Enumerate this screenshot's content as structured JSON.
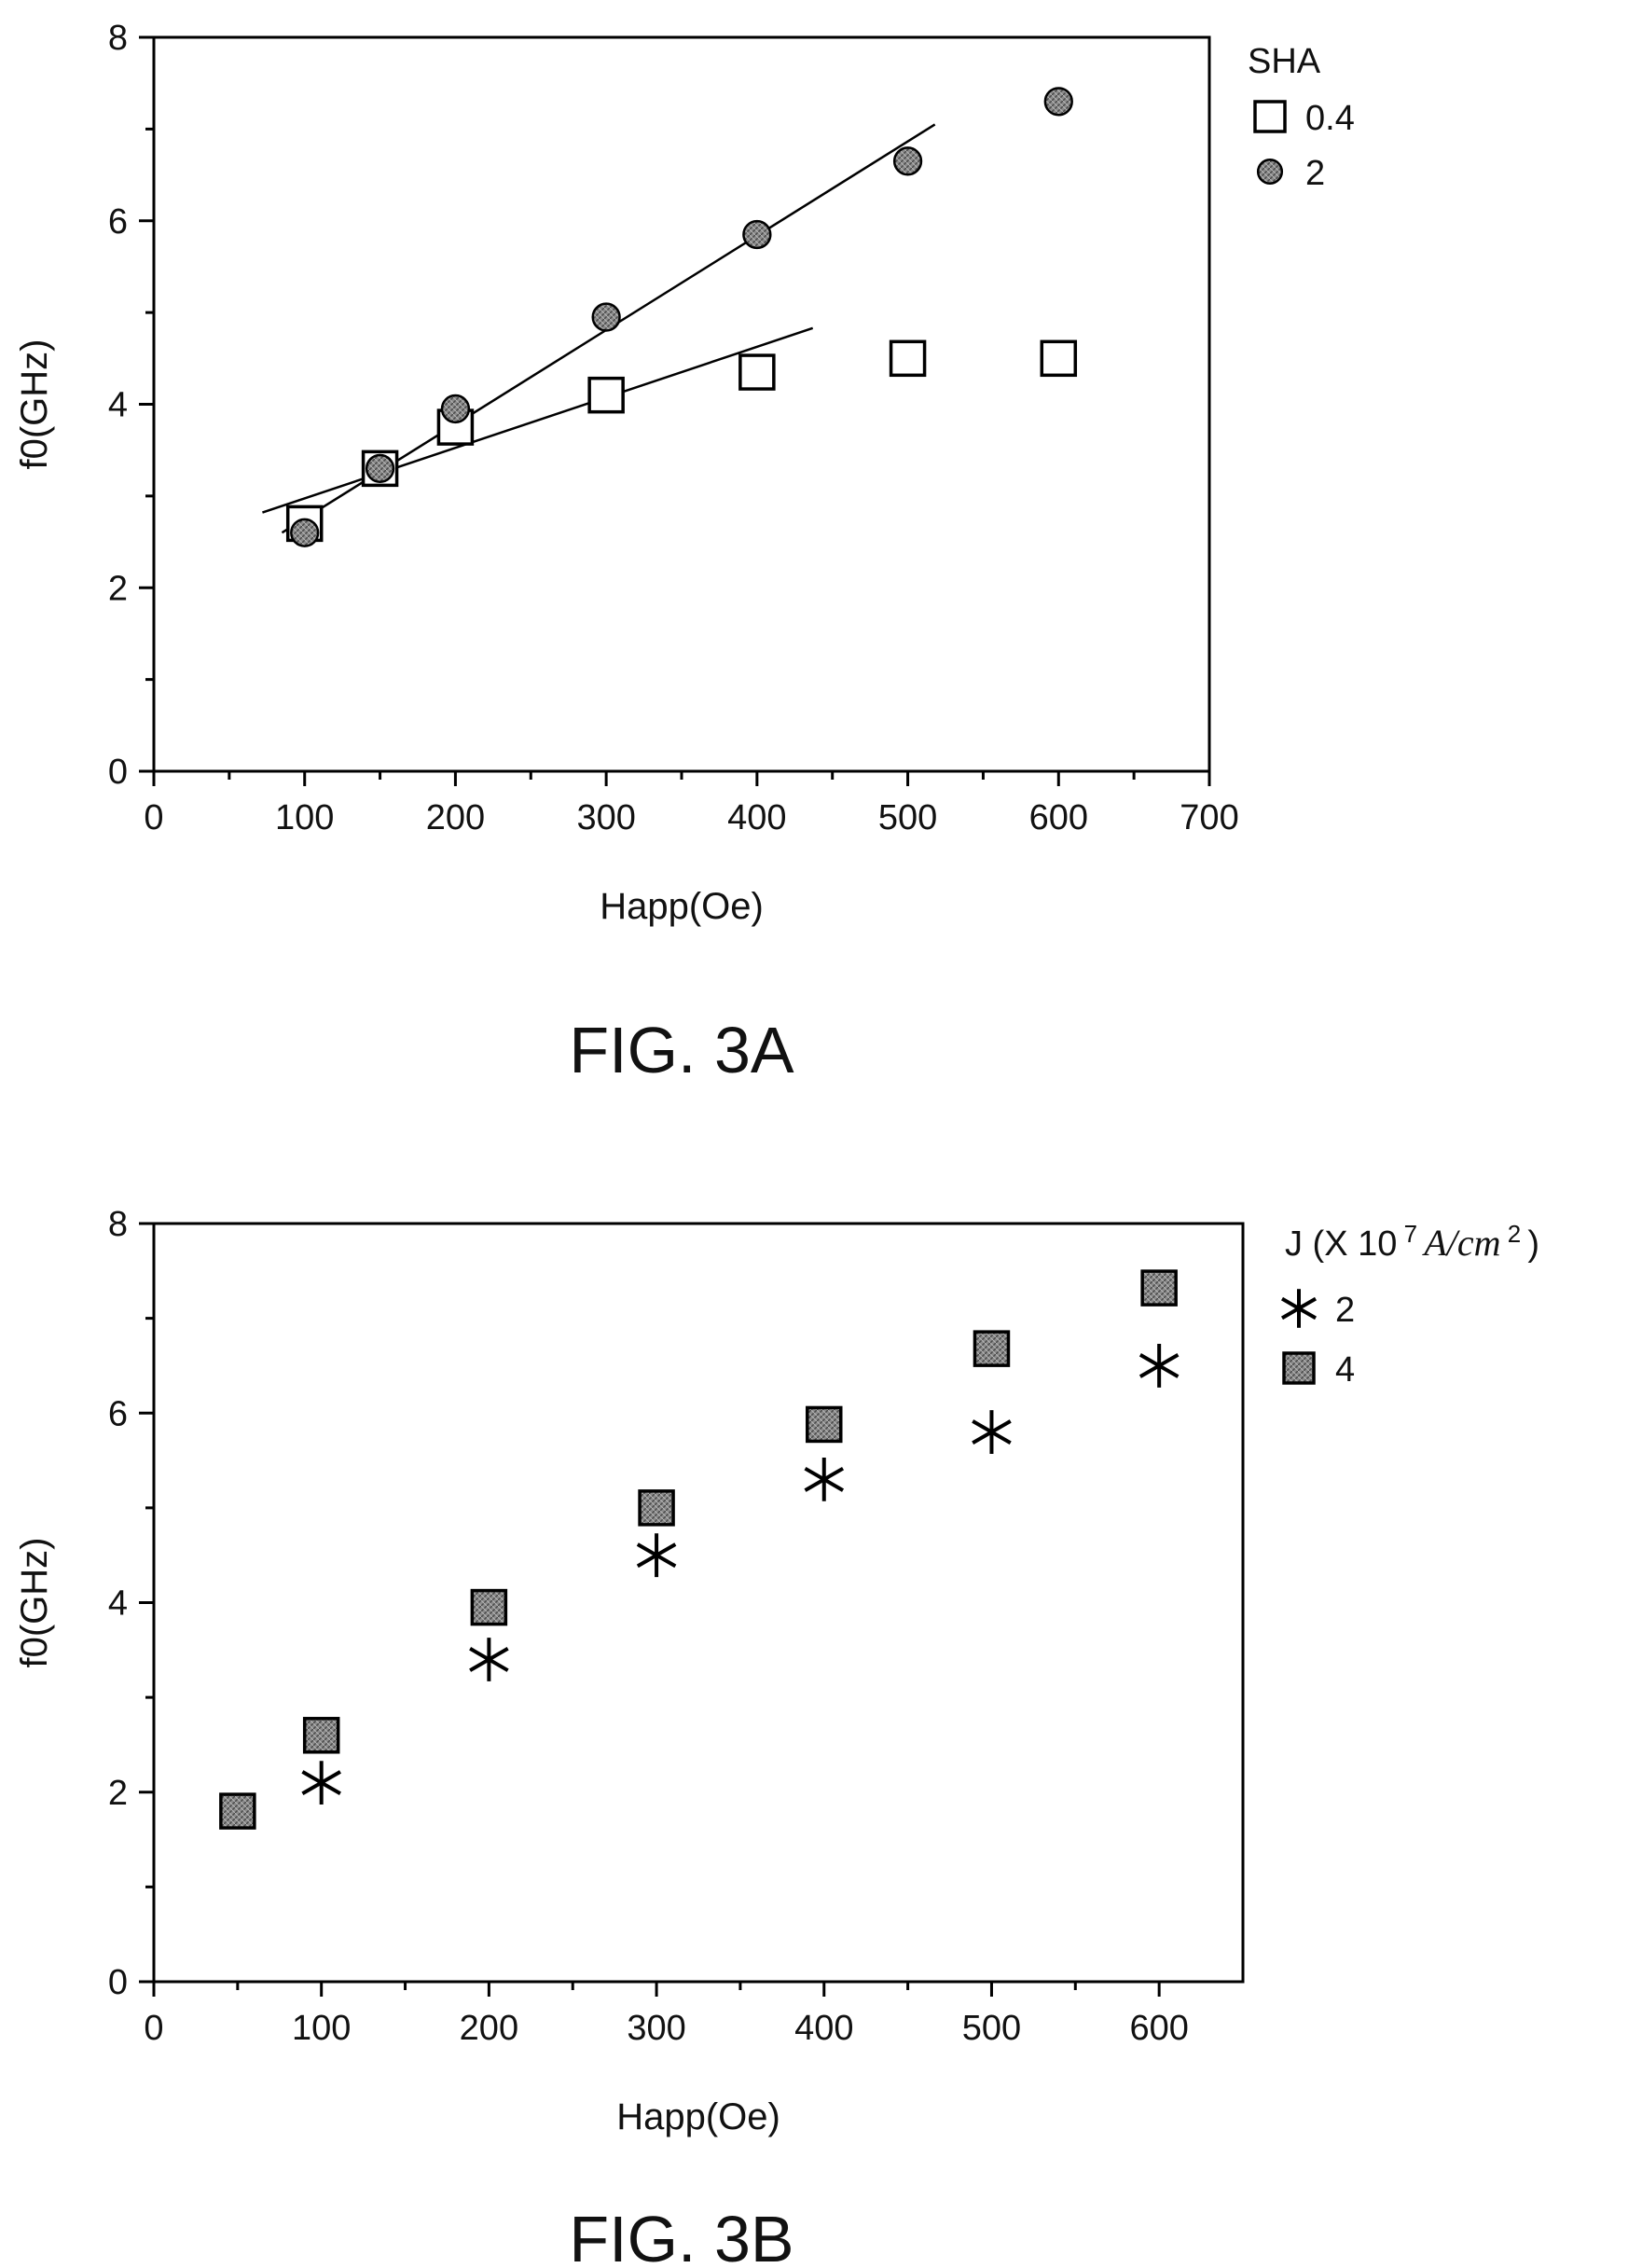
{
  "chart_data": [
    {
      "type": "scatter",
      "caption": "FIG. 3A",
      "xlabel": "Happ(Oe)",
      "ylabel": "f0(GHz)",
      "xlim": [
        0,
        700
      ],
      "ylim": [
        0,
        8
      ],
      "xticks": [
        0,
        100,
        200,
        300,
        400,
        500,
        600,
        700
      ],
      "yticks": [
        0,
        2,
        4,
        6,
        8
      ],
      "legend_title": "SHA",
      "legend_position": "outside-top-right",
      "series": [
        {
          "name": "0.4",
          "marker": "open-square",
          "x": [
            100,
            150,
            200,
            300,
            400,
            500,
            600
          ],
          "y": [
            2.7,
            3.3,
            3.75,
            4.1,
            4.35,
            4.5,
            4.5
          ],
          "fit_line": {
            "x": [
              72,
              437
            ],
            "y": [
              2.82,
              4.83
            ]
          }
        },
        {
          "name": "2",
          "marker": "filled-circle",
          "x": [
            100,
            150,
            200,
            300,
            400,
            500,
            600
          ],
          "y": [
            2.6,
            3.3,
            3.95,
            4.95,
            5.85,
            6.65,
            7.3
          ],
          "fit_line": {
            "x": [
              85,
              518
            ],
            "y": [
              2.6,
              7.05
            ]
          }
        }
      ]
    },
    {
      "type": "scatter",
      "caption": "FIG. 3B",
      "xlabel": "Happ(Oe)",
      "ylabel": "f0(GHz)",
      "xlim": [
        0,
        650
      ],
      "ylim": [
        0,
        8
      ],
      "xticks": [
        0,
        100,
        200,
        300,
        400,
        500,
        600
      ],
      "yticks": [
        0,
        2,
        4,
        6,
        8
      ],
      "legend_title": "J (X 10",
      "legend_title_sup": "7",
      "legend_title_unit": "A/cm",
      "legend_title_unit_sup": "2",
      "legend_title_close": ")",
      "legend_position": "outside-top-right",
      "series": [
        {
          "name": "2",
          "marker": "asterisk",
          "x": [
            100,
            200,
            300,
            400,
            500,
            600
          ],
          "y": [
            2.1,
            3.4,
            4.5,
            5.3,
            5.8,
            6.5
          ]
        },
        {
          "name": "4",
          "marker": "filled-square",
          "x": [
            50,
            100,
            200,
            300,
            400,
            500,
            600
          ],
          "y": [
            1.8,
            2.6,
            3.95,
            5.0,
            5.88,
            6.68,
            7.32
          ]
        }
      ]
    }
  ]
}
